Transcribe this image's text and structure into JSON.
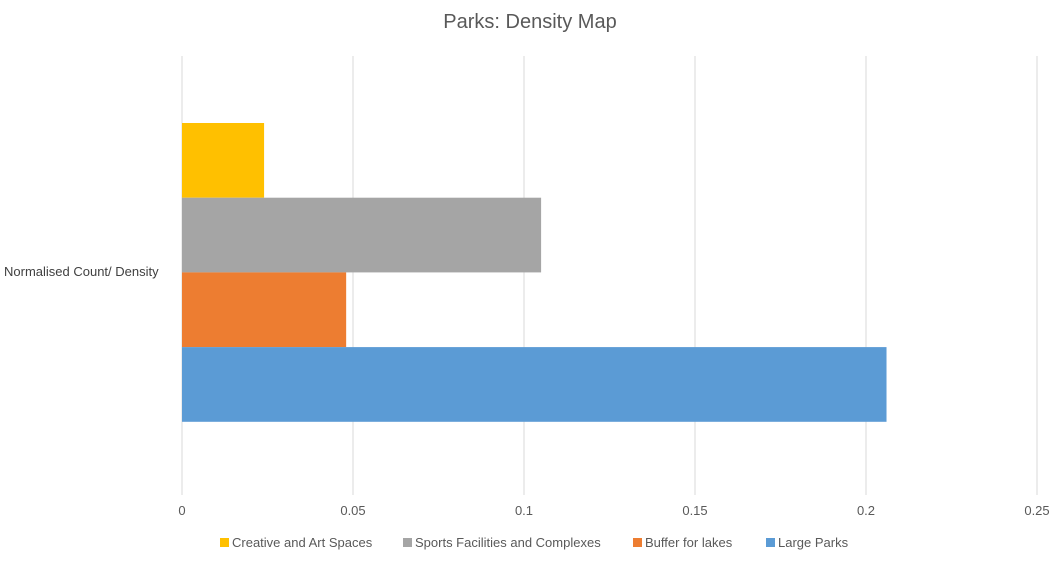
{
  "chart_data": {
    "type": "bar",
    "orientation": "horizontal",
    "title": "Parks: Density Map",
    "categories": [
      "Normalised Count/ Density"
    ],
    "series": [
      {
        "name": "Creative and Art Spaces",
        "values": [
          0.024
        ],
        "color": "#FFC000"
      },
      {
        "name": "Sports Facilities and Complexes",
        "values": [
          0.105
        ],
        "color": "#A5A5A5"
      },
      {
        "name": "Buffer for lakes",
        "values": [
          0.048
        ],
        "color": "#ED7D31"
      },
      {
        "name": "Large Parks",
        "values": [
          0.206
        ],
        "color": "#5B9BD5"
      }
    ],
    "xlim": [
      0,
      0.25
    ],
    "xticks": [
      "0",
      "0.05",
      "0.1",
      "0.15",
      "0.2",
      "0.25"
    ],
    "xlabel": "",
    "ylabel": "",
    "grid": "vertical",
    "legend": "bottom"
  }
}
